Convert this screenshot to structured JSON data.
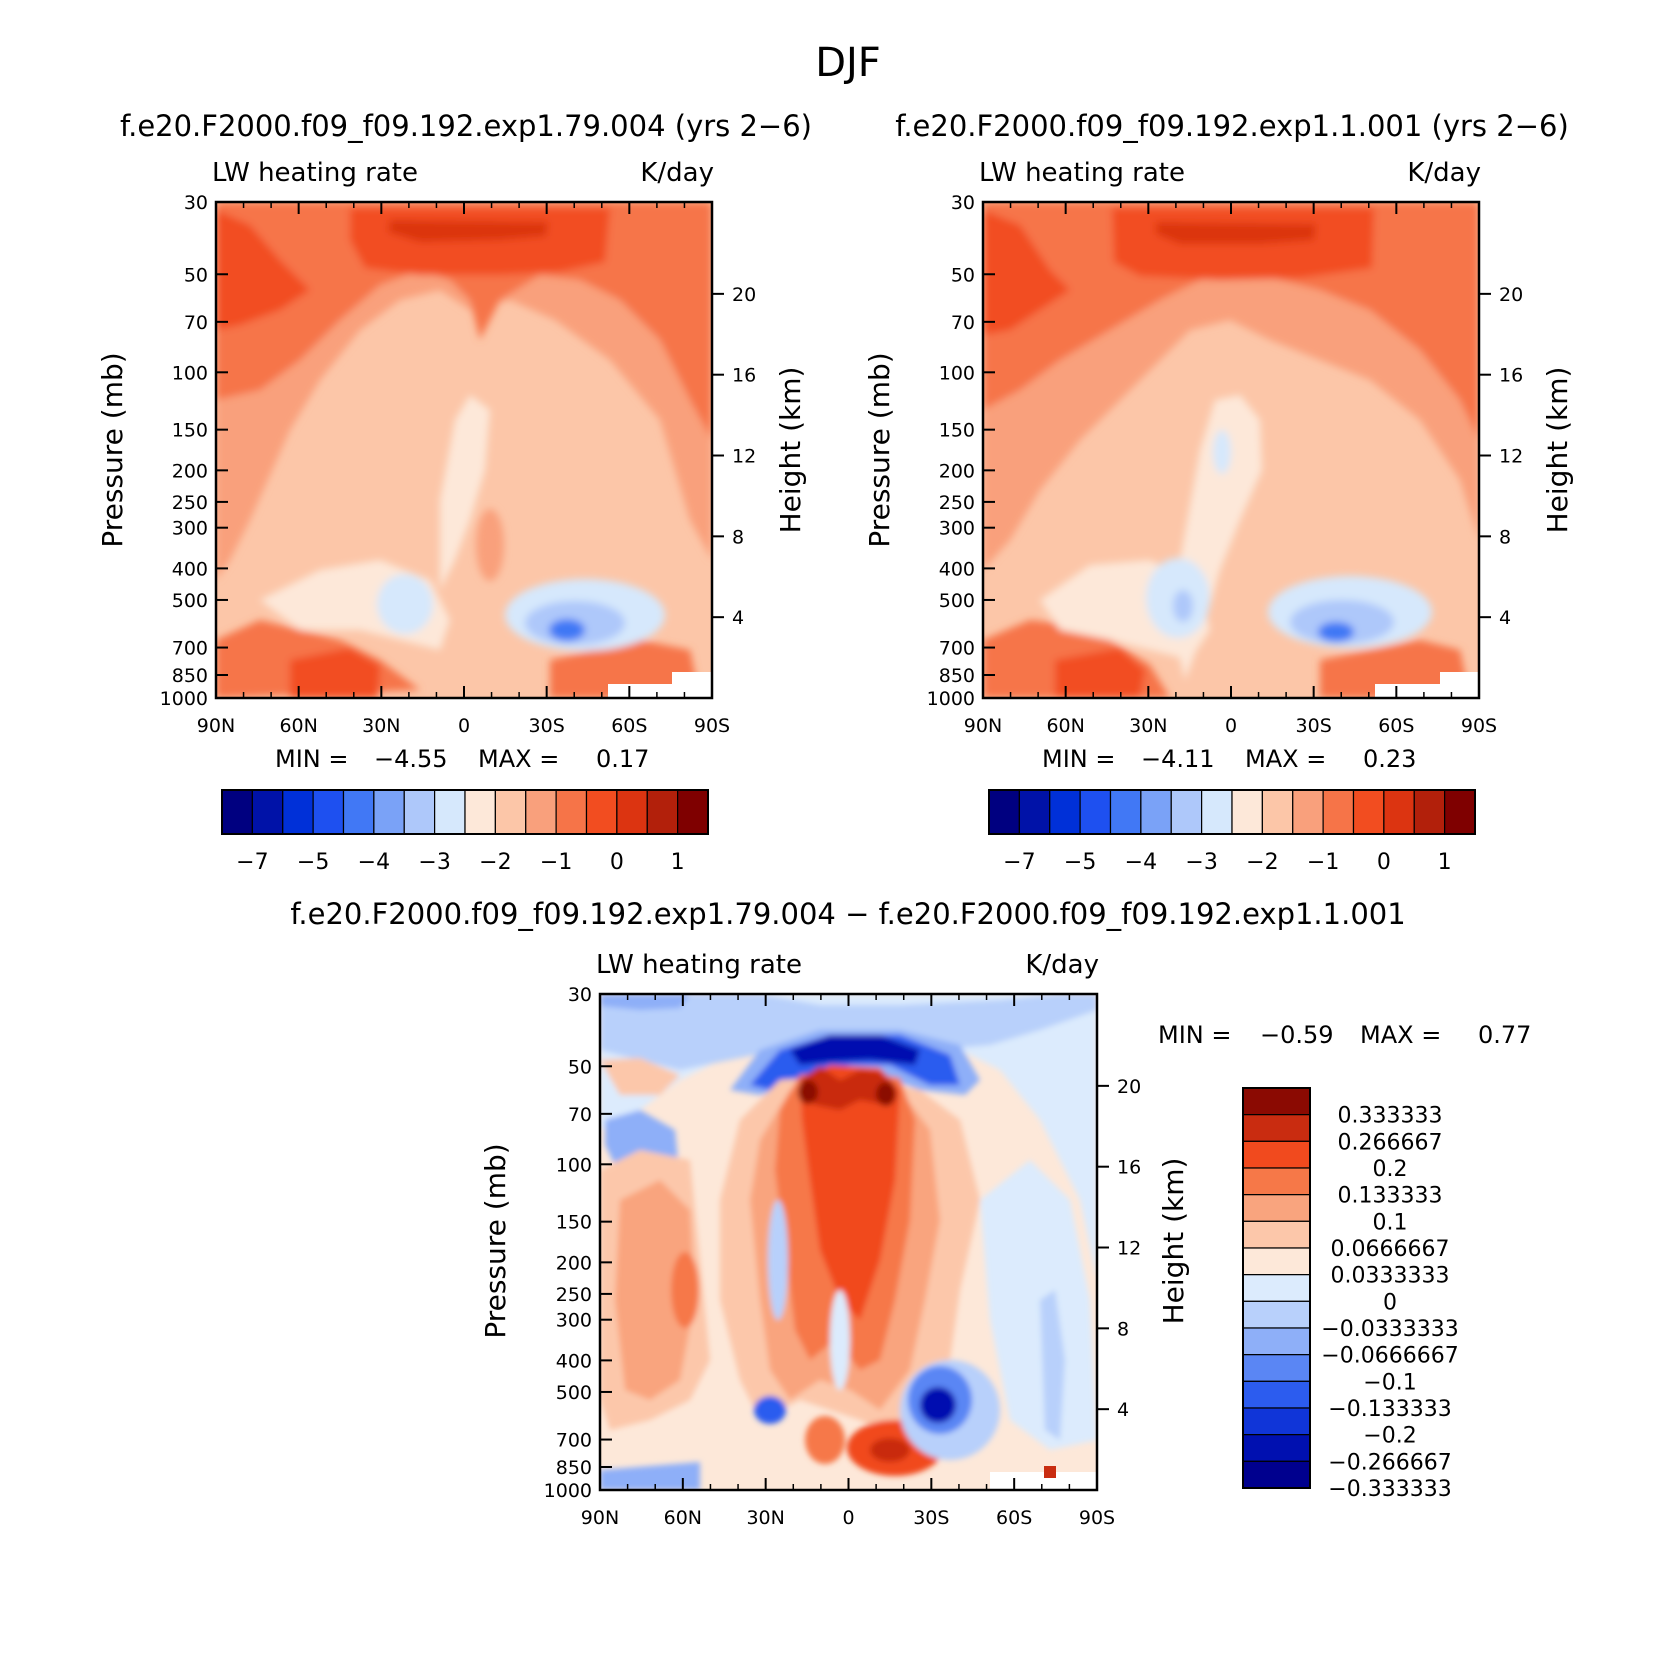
{
  "figure": {
    "title": "DJF"
  },
  "colors": {
    "abs_levels": [
      "#000080",
      "#0012a8",
      "#0030d8",
      "#1e50f0",
      "#4178f5",
      "#7aa2f7",
      "#aec8fa",
      "#d6e8fc",
      "#fde8d9",
      "#fcc6a8",
      "#f9a07c",
      "#f67448",
      "#f24d20",
      "#dc3411",
      "#b2200b",
      "#7f0000"
    ],
    "diff_levels": [
      "#00008e",
      "#0010b0",
      "#1035d8",
      "#2c5cef",
      "#5a86f4",
      "#8eaff8",
      "#b8d0fb",
      "#dcebfd",
      "#fde8d9",
      "#fcc7aa",
      "#f9a47e",
      "#f67848",
      "#f14a1e",
      "#c92c10",
      "#8b0a02"
    ]
  },
  "chart_data": [
    {
      "type": "heatmap",
      "id": "panel1",
      "title": "f.e20.F2000.f09_f09.192.exp1.79.004 (yrs 2−6)",
      "left_label": "LW heating rate",
      "right_label": "K/day",
      "ylabel": "Pressure (mb)",
      "ylabel_right": "Height (km)",
      "x_ticks": [
        "90N",
        "60N",
        "30N",
        "0",
        "30S",
        "60S",
        "90S"
      ],
      "y_ticks": [
        "30",
        "50",
        "70",
        "100",
        "150",
        "200",
        "250",
        "300",
        "400",
        "500",
        "700",
        "850",
        "1000"
      ],
      "height_ticks": [
        "20",
        "16",
        "12",
        "8",
        "4"
      ],
      "min_label": "MIN =",
      "min_value": "−4.55",
      "max_label": "MAX =",
      "max_value": "0.17",
      "colorbar_labels": [
        "−7",
        "−5",
        "−4",
        "−3",
        "−2",
        "−1",
        "0",
        "1"
      ]
    },
    {
      "type": "heatmap",
      "id": "panel2",
      "title": "f.e20.F2000.f09_f09.192.exp1.1.001 (yrs 2−6)",
      "left_label": "LW heating rate",
      "right_label": "K/day",
      "ylabel": "Pressure (mb)",
      "ylabel_right": "Height (km)",
      "x_ticks": [
        "90N",
        "60N",
        "30N",
        "0",
        "30S",
        "60S",
        "90S"
      ],
      "y_ticks": [
        "30",
        "50",
        "70",
        "100",
        "150",
        "200",
        "250",
        "300",
        "400",
        "500",
        "700",
        "850",
        "1000"
      ],
      "height_ticks": [
        "20",
        "16",
        "12",
        "8",
        "4"
      ],
      "min_label": "MIN =",
      "min_value": "−4.11",
      "max_label": "MAX =",
      "max_value": "0.23",
      "colorbar_labels": [
        "−7",
        "−5",
        "−4",
        "−3",
        "−2",
        "−1",
        "0",
        "1"
      ]
    },
    {
      "type": "heatmap",
      "id": "panel3",
      "title": "f.e20.F2000.f09_f09.192.exp1.79.004 − f.e20.F2000.f09_f09.192.exp1.1.001",
      "left_label": "LW heating rate",
      "right_label": "K/day",
      "ylabel": "Pressure (mb)",
      "ylabel_right": "Height (km)",
      "x_ticks": [
        "90N",
        "60N",
        "30N",
        "0",
        "30S",
        "60S",
        "90S"
      ],
      "y_ticks": [
        "30",
        "50",
        "70",
        "100",
        "150",
        "200",
        "250",
        "300",
        "400",
        "500",
        "700",
        "850",
        "1000"
      ],
      "height_ticks": [
        "20",
        "16",
        "12",
        "8",
        "4"
      ],
      "min_label": "MIN =",
      "min_value": "−0.59",
      "max_label": "MAX =",
      "max_value": "0.77",
      "colorbar_labels": [
        "0.333333",
        "0.266667",
        "0.2",
        "0.133333",
        "0.1",
        "0.0666667",
        "0.0333333",
        "0",
        "−0.0333333",
        "−0.0666667",
        "−0.1",
        "−0.133333",
        "−0.2",
        "−0.266667",
        "−0.333333"
      ]
    }
  ]
}
